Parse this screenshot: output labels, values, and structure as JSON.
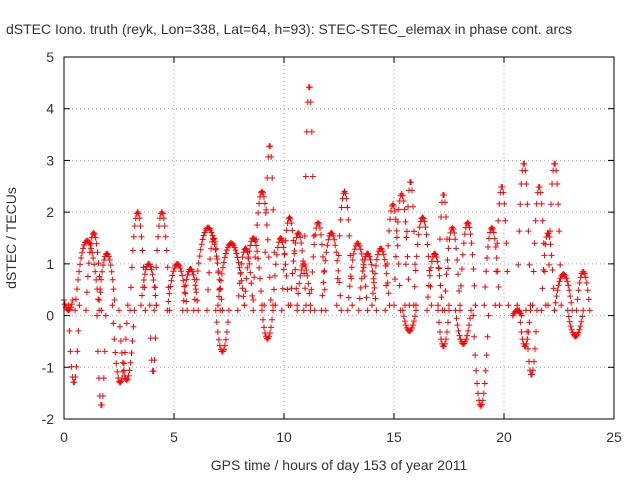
{
  "chart_data": {
    "type": "scatter",
    "title": "dSTEC Iono. truth (reyk, Lon=338, Lat=64, h=93): STEC-STEC_elemax in phase cont. arcs",
    "xlabel": "GPS time / hours of day 153 of year 2011",
    "ylabel": "dSTEC  / TECUs",
    "xlim": [
      0,
      25
    ],
    "ylim": [
      -2,
      5
    ],
    "xticks": [
      0,
      5,
      10,
      15,
      20,
      25
    ],
    "yticks": [
      -2,
      -1,
      0,
      1,
      2,
      3,
      4,
      5
    ],
    "grid": true,
    "marker": "plus",
    "series_color": "#ff0000",
    "grid_color": "#a0a0a0",
    "arcs": [
      {
        "t0": 0.0,
        "t1": 0.4,
        "a": 0.3,
        "b": 0.1
      },
      {
        "t0": 0.2,
        "t1": 0.7,
        "a": 0.2,
        "b": -1.3
      },
      {
        "t0": 0.5,
        "t1": 1.6,
        "a": 0.1,
        "b": 1.45
      },
      {
        "t0": 1.0,
        "t1": 1.7,
        "a": 0.1,
        "b": 1.6
      },
      {
        "t0": 1.5,
        "t1": 1.9,
        "a": 0.0,
        "b": -1.75
      },
      {
        "t0": 1.6,
        "t1": 2.3,
        "a": 0.3,
        "b": 1.2
      },
      {
        "t0": 2.2,
        "t1": 2.9,
        "a": 0.2,
        "b": -1.3
      },
      {
        "t0": 2.5,
        "t1": 3.2,
        "a": 0.1,
        "b": -1.25
      },
      {
        "t0": 3.0,
        "t1": 3.7,
        "a": 0.1,
        "b": 2.0
      },
      {
        "t0": 3.5,
        "t1": 4.2,
        "a": 0.2,
        "b": 1.0
      },
      {
        "t0": 3.9,
        "t1": 4.2,
        "a": 0.2,
        "b": -1.1
      },
      {
        "t0": 4.1,
        "t1": 4.8,
        "a": 0.1,
        "b": 2.0
      },
      {
        "t0": 4.7,
        "t1": 5.6,
        "a": 0.1,
        "b": 1.0
      },
      {
        "t0": 5.4,
        "t1": 6.1,
        "a": 0.1,
        "b": 0.9
      },
      {
        "t0": 5.9,
        "t1": 7.2,
        "a": 0.1,
        "b": 1.7
      },
      {
        "t0": 6.5,
        "t1": 7.1,
        "a": 0.1,
        "b": 1.5
      },
      {
        "t0": 6.9,
        "t1": 7.5,
        "a": 0.1,
        "b": -0.7
      },
      {
        "t0": 7.0,
        "t1": 8.2,
        "a": 0.2,
        "b": 1.4
      },
      {
        "t0": 7.9,
        "t1": 8.6,
        "a": 0.1,
        "b": 1.3
      },
      {
        "t0": 8.2,
        "t1": 9.0,
        "a": 0.2,
        "b": 1.5
      },
      {
        "t0": 8.6,
        "t1": 9.4,
        "a": 0.3,
        "b": 2.4
      },
      {
        "t0": 9.1,
        "t1": 9.6,
        "a": 0.2,
        "b": 3.3
      },
      {
        "t0": 9.0,
        "t1": 9.5,
        "a": 0.1,
        "b": -0.45
      },
      {
        "t0": 9.5,
        "t1": 10.2,
        "a": 0.2,
        "b": 1.5
      },
      {
        "t0": 9.9,
        "t1": 10.6,
        "a": 0.1,
        "b": 1.9
      },
      {
        "t0": 10.3,
        "t1": 11.0,
        "a": 0.2,
        "b": 1.6
      },
      {
        "t0": 10.6,
        "t1": 11.2,
        "a": 0.2,
        "b": 1.0
      },
      {
        "t0": 10.9,
        "t1": 11.4,
        "a": 0.1,
        "b": 4.45
      },
      {
        "t0": 11.2,
        "t1": 11.9,
        "a": 0.1,
        "b": 1.8
      },
      {
        "t0": 11.7,
        "t1": 12.6,
        "a": 0.1,
        "b": 1.6
      },
      {
        "t0": 12.4,
        "t1": 13.1,
        "a": 0.2,
        "b": 2.4
      },
      {
        "t0": 12.9,
        "t1": 13.8,
        "a": 0.1,
        "b": 1.4
      },
      {
        "t0": 13.4,
        "t1": 14.2,
        "a": 0.1,
        "b": 1.2
      },
      {
        "t0": 14.0,
        "t1": 14.8,
        "a": 0.2,
        "b": 1.3
      },
      {
        "t0": 14.6,
        "t1": 15.3,
        "a": 0.1,
        "b": 2.15
      },
      {
        "t0": 15.0,
        "t1": 15.7,
        "a": 0.2,
        "b": 2.35
      },
      {
        "t0": 15.5,
        "t1": 16.0,
        "a": 0.2,
        "b": 2.6
      },
      {
        "t0": 15.4,
        "t1": 16.0,
        "a": 0.1,
        "b": -0.3
      },
      {
        "t0": 15.9,
        "t1": 16.7,
        "a": 0.2,
        "b": 1.9
      },
      {
        "t0": 16.5,
        "t1": 17.2,
        "a": 0.1,
        "b": 1.2
      },
      {
        "t0": 17.0,
        "t1": 17.5,
        "a": 0.2,
        "b": 2.35
      },
      {
        "t0": 17.0,
        "t1": 17.5,
        "a": 0.1,
        "b": -0.6
      },
      {
        "t0": 17.3,
        "t1": 18.0,
        "a": 0.1,
        "b": 1.7
      },
      {
        "t0": 17.8,
        "t1": 18.5,
        "a": 0.1,
        "b": -0.55
      },
      {
        "t0": 18.0,
        "t1": 18.7,
        "a": 0.2,
        "b": 1.8
      },
      {
        "t0": 18.6,
        "t1": 19.3,
        "a": 0.0,
        "b": -1.75
      },
      {
        "t0": 19.1,
        "t1": 19.8,
        "a": 0.2,
        "b": 1.7
      },
      {
        "t0": 19.6,
        "t1": 20.2,
        "a": 0.2,
        "b": 2.5
      },
      {
        "t0": 20.4,
        "t1": 20.8,
        "a": 0.0,
        "b": 0.1
      },
      {
        "t0": 20.6,
        "t1": 21.2,
        "a": 0.2,
        "b": 2.95
      },
      {
        "t0": 20.7,
        "t1": 21.2,
        "a": 0.1,
        "b": -0.6
      },
      {
        "t0": 21.0,
        "t1": 21.5,
        "a": 0.1,
        "b": -1.15
      },
      {
        "t0": 21.3,
        "t1": 21.9,
        "a": 0.2,
        "b": 2.5
      },
      {
        "t0": 21.7,
        "t1": 22.3,
        "a": 0.1,
        "b": 1.6
      },
      {
        "t0": 22.0,
        "t1": 22.6,
        "a": 0.2,
        "b": 2.95
      },
      {
        "t0": 22.3,
        "t1": 23.1,
        "a": 0.1,
        "b": 0.8
      },
      {
        "t0": 22.9,
        "t1": 23.6,
        "a": 0.1,
        "b": -0.4
      },
      {
        "t0": 23.3,
        "t1": 23.9,
        "a": 0.1,
        "b": 0.85
      }
    ]
  }
}
